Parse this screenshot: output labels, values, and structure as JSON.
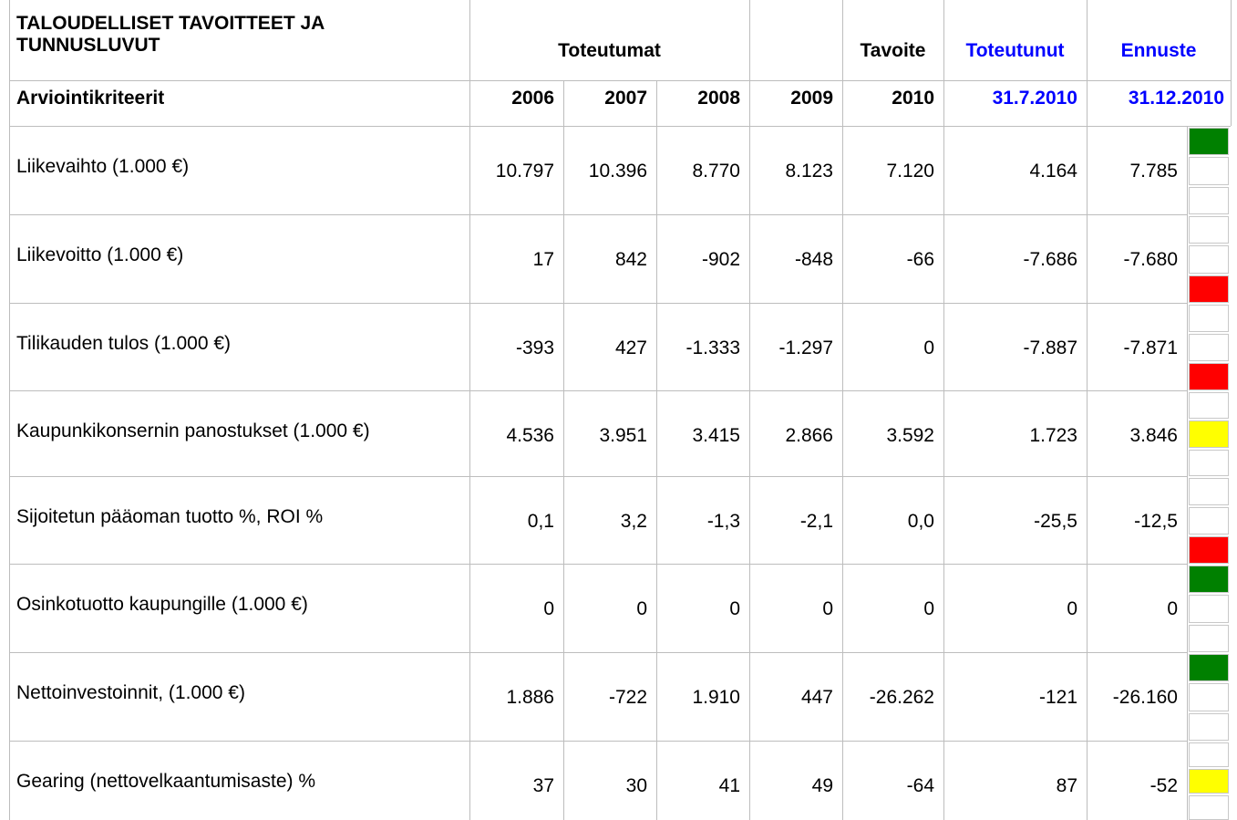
{
  "header": {
    "title": "TALOUDELLISET TAVOITTEET JA TUNNUSLUVUT",
    "group_actual": "Toteutumat",
    "target": "Tavoite",
    "realized": "Toteutunut",
    "forecast": "Ennuste",
    "criteria": "Arviointikriteerit",
    "years": [
      "2006",
      "2007",
      "2008",
      "2009",
      "2010",
      "31.7.2010",
      "31.12.2010"
    ]
  },
  "table": {
    "rows": [
      {
        "label": "Liikevaihto (1.000 €)",
        "values": [
          "10.797",
          "10.396",
          "8.770",
          "8.123",
          "7.120",
          "4.164",
          "7.785"
        ],
        "signal": [
          "#008000",
          null,
          null
        ]
      },
      {
        "label": "Liikevoitto (1.000 €)",
        "values": [
          "17",
          "842",
          "-902",
          "-848",
          "-66",
          "-7.686",
          "-7.680"
        ],
        "signal": [
          null,
          null,
          "#ff0000"
        ]
      },
      {
        "label": "Tilikauden tulos (1.000 €)",
        "values": [
          "-393",
          "427",
          "-1.333",
          "-1.297",
          "0",
          "-7.887",
          "-7.871"
        ],
        "signal": [
          null,
          null,
          "#ff0000"
        ]
      },
      {
        "label": "Kaupunkikonsernin panostukset (1.000 €)",
        "values": [
          "4.536",
          "3.951",
          "3.415",
          "2.866",
          "3.592",
          "1.723",
          "3.846"
        ],
        "signal": [
          null,
          "#ffff00",
          null
        ]
      },
      {
        "label": "Sijoitetun pääoman tuotto %,  ROI %",
        "values": [
          "0,1",
          "3,2",
          "-1,3",
          "-2,1",
          "0,0",
          "-25,5",
          "-12,5"
        ],
        "signal": [
          null,
          null,
          "#ff0000"
        ]
      },
      {
        "label": "Osinkotuotto kaupungille (1.000 €)",
        "values": [
          "0",
          "0",
          "0",
          "0",
          "0",
          "0",
          "0"
        ],
        "signal": [
          "#008000",
          null,
          null
        ]
      },
      {
        "label": "Nettoinvestoinnit, (1.000 €)",
        "values": [
          "1.886",
          "-722",
          "1.910",
          "447",
          "-26.262",
          "-121",
          "-26.160"
        ],
        "signal": [
          "#008000",
          null,
          null
        ]
      },
      {
        "label": "Gearing (nettovelkaantumisaste) %",
        "values": [
          "37",
          "30",
          "41",
          "49",
          "-64",
          "87",
          "-52"
        ],
        "signal": [
          null,
          "#ffff00",
          null
        ]
      }
    ]
  }
}
